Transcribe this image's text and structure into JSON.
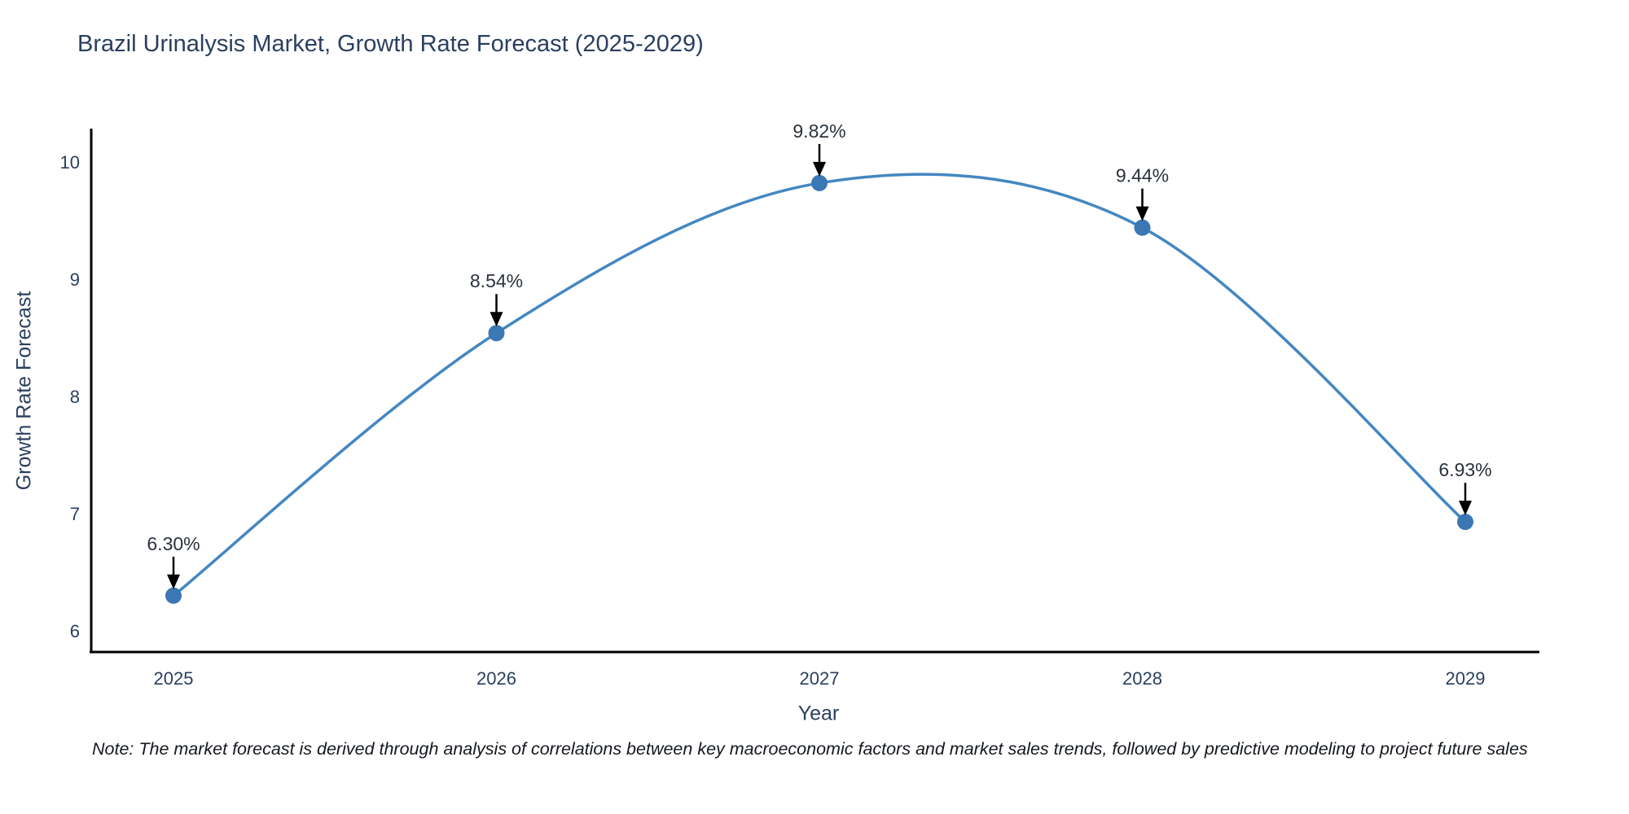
{
  "title": "Brazil Urinalysis Market, Growth Rate Forecast (2025-2029)",
  "note": "Note: The market forecast is derived through analysis of correlations between key macroeconomic factors and market sales trends, followed by predictive modeling to project future sales",
  "chart_data": {
    "type": "line",
    "line_shape": "spline",
    "title": "Brazil Urinalysis Market, Growth Rate Forecast (2025-2029)",
    "xlabel": "Year",
    "ylabel": "Growth Rate Forecast",
    "categories": [
      2025,
      2026,
      2027,
      2028,
      2029
    ],
    "values": [
      6.3,
      8.54,
      9.82,
      9.44,
      6.93
    ],
    "point_labels": [
      "6.30%",
      "8.54%",
      "9.82%",
      "9.44%",
      "6.93%"
    ],
    "yticks": [
      6,
      7,
      8,
      9,
      10
    ],
    "ylim": [
      5.8,
      10.6
    ],
    "grid": false,
    "legend": false,
    "annotations": "black arrows pointing down to each data point",
    "colors": {
      "line": "#4487c1",
      "marker": "#3a77b4",
      "axis": "#000000",
      "tick_label": "#2a3f5f",
      "title": "#2a3f5f",
      "annotation_text": "#2b323c",
      "annotation_arrow": "#000000"
    }
  }
}
